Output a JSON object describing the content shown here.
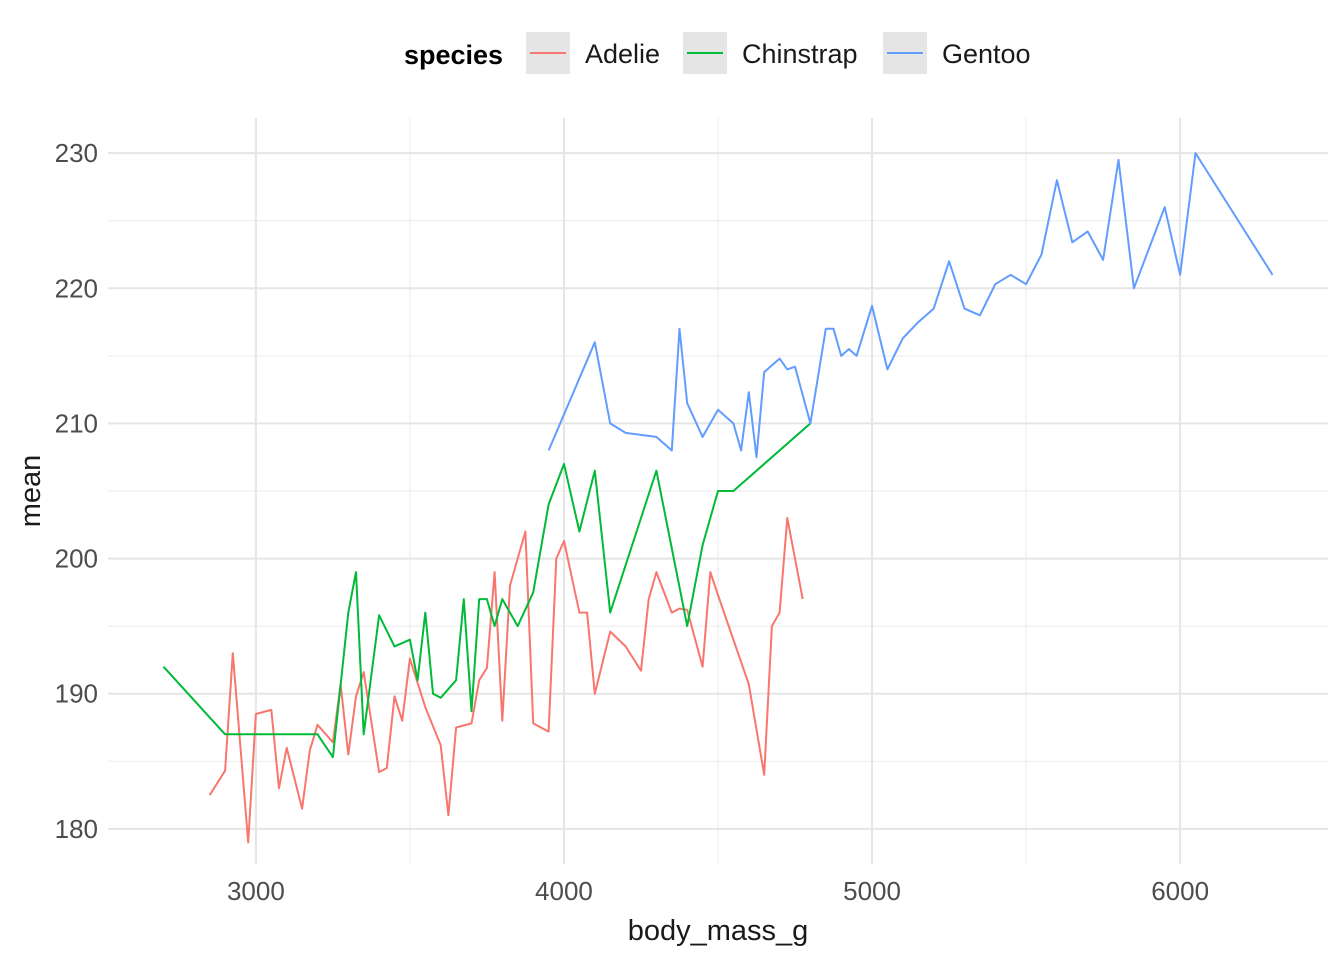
{
  "chart_data": {
    "type": "line",
    "xlabel": "body_mass_g",
    "ylabel": "mean",
    "xlim": [
      2520,
      6480
    ],
    "ylim": [
      177.4,
      232.6
    ],
    "x_ticks": [
      3000,
      4000,
      5000,
      6000
    ],
    "x_tick_labels": [
      "3000",
      "4000",
      "5000",
      "6000"
    ],
    "y_ticks": [
      180,
      190,
      200,
      210,
      220,
      230
    ],
    "y_tick_labels": [
      "180",
      "190",
      "200",
      "210",
      "220",
      "230"
    ],
    "grid": true,
    "legend": {
      "title": "species",
      "position": "top"
    },
    "series": [
      {
        "name": "Adelie",
        "color": "#F8766D",
        "x": [
          2850,
          2900,
          2925,
          2975,
          3000,
          3050,
          3075,
          3100,
          3150,
          3175,
          3200,
          3250,
          3275,
          3300,
          3325,
          3350,
          3400,
          3425,
          3450,
          3475,
          3500,
          3550,
          3600,
          3625,
          3650,
          3700,
          3725,
          3750,
          3775,
          3800,
          3825,
          3875,
          3900,
          3950,
          3975,
          4000,
          4050,
          4075,
          4100,
          4150,
          4200,
          4250,
          4275,
          4300,
          4350,
          4375,
          4400,
          4450,
          4475,
          4500,
          4550,
          4600,
          4650,
          4675,
          4700,
          4725,
          4775
        ],
        "y": [
          182.5,
          184.3,
          193.0,
          179.0,
          188.5,
          188.8,
          183.0,
          186.0,
          181.5,
          185.8,
          187.7,
          186.4,
          190.7,
          185.5,
          189.8,
          191.6,
          184.2,
          184.5,
          189.8,
          188.0,
          192.6,
          189.0,
          186.2,
          181.0,
          187.5,
          187.8,
          191.0,
          191.9,
          199.0,
          188.0,
          198.0,
          202.0,
          187.8,
          187.2,
          200.0,
          201.3,
          196.0,
          196.0,
          190.0,
          194.6,
          193.5,
          191.7,
          197.0,
          199.0,
          196.0,
          196.3,
          196.2,
          192.0,
          199.0,
          197.3,
          194.0,
          190.7,
          184.0,
          195.0,
          196.0,
          203.0,
          197.0
        ]
      },
      {
        "name": "Chinstrap",
        "color": "#00BA38",
        "x": [
          2700,
          2900,
          3200,
          3250,
          3300,
          3325,
          3350,
          3400,
          3450,
          3500,
          3525,
          3550,
          3575,
          3600,
          3650,
          3675,
          3700,
          3725,
          3750,
          3775,
          3800,
          3850,
          3900,
          3950,
          4000,
          4050,
          4100,
          4150,
          4300,
          4400,
          4450,
          4500,
          4550,
          4800
        ],
        "y": [
          192.0,
          187.0,
          187.0,
          185.3,
          196.0,
          199.0,
          187.0,
          195.8,
          193.5,
          194.0,
          191.0,
          196.0,
          190.0,
          189.7,
          191.0,
          197.0,
          188.7,
          197.0,
          197.0,
          195.0,
          197.0,
          195.0,
          197.5,
          204.0,
          207.0,
          202.0,
          206.5,
          196.0,
          206.5,
          195.0,
          201.0,
          205.0,
          205.0,
          210.0
        ]
      },
      {
        "name": "Gentoo",
        "color": "#619CFF",
        "x": [
          3950,
          4100,
          4150,
          4200,
          4300,
          4350,
          4375,
          4400,
          4450,
          4500,
          4550,
          4575,
          4600,
          4625,
          4650,
          4700,
          4725,
          4750,
          4800,
          4850,
          4875,
          4900,
          4925,
          4950,
          5000,
          5050,
          5100,
          5150,
          5200,
          5250,
          5300,
          5350,
          5400,
          5450,
          5500,
          5550,
          5600,
          5650,
          5700,
          5750,
          5800,
          5850,
          5950,
          6000,
          6050,
          6300
        ],
        "y": [
          208.0,
          216.0,
          210.0,
          209.3,
          209.0,
          208.0,
          217.0,
          211.5,
          209.0,
          211.0,
          210.0,
          208.0,
          212.3,
          207.5,
          213.8,
          214.8,
          214.0,
          214.2,
          210.0,
          217.0,
          217.0,
          215.0,
          215.5,
          215.0,
          218.7,
          214.0,
          216.3,
          217.5,
          218.5,
          222.0,
          218.5,
          218.0,
          220.3,
          221.0,
          220.3,
          222.5,
          228.0,
          223.4,
          224.2,
          222.1,
          229.5,
          220.0,
          226.0,
          221.0,
          230.0,
          221.0
        ]
      }
    ]
  }
}
